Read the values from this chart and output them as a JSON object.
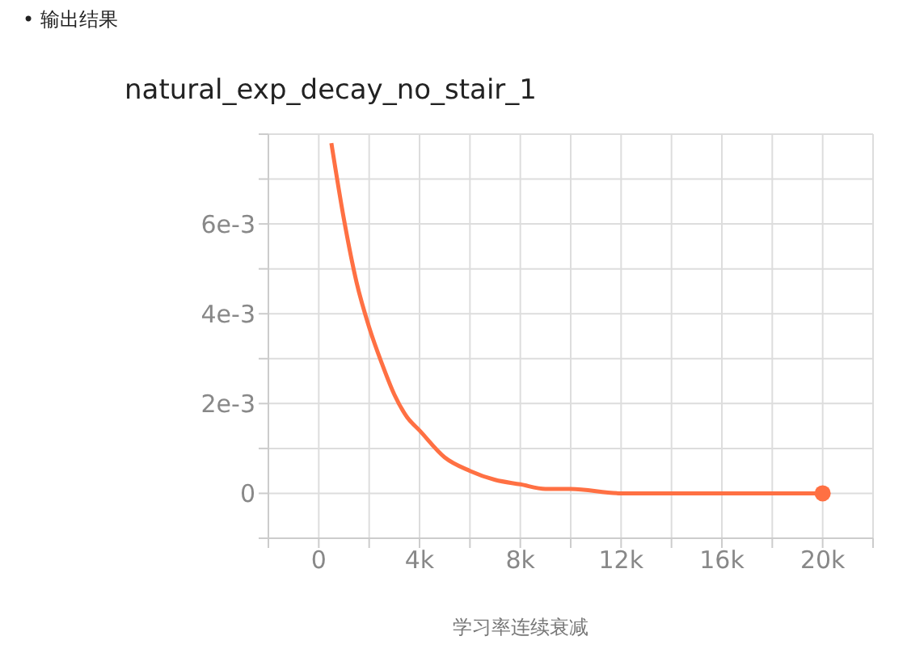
{
  "chart_data": {
    "type": "line",
    "title": "natural_exp_decay_no_stair_1",
    "annotations": [
      "• 输出结果",
      "学习率连续衰减"
    ],
    "x": [
      500,
      1000,
      1500,
      2000,
      2500,
      3000,
      3500,
      4000,
      5000,
      6000,
      7000,
      8000,
      9000,
      10000,
      12000,
      14000,
      16000,
      18000,
      20000
    ],
    "series": [
      {
        "color": "#ff7043",
        "values": [
          0.0078,
          0.0061,
          0.0047,
          0.0037,
          0.0029,
          0.0022,
          0.0017,
          0.0014,
          0.0008,
          0.0005,
          0.0003,
          0.0002,
          0.0001,
          0.0001,
          0,
          0,
          0,
          0,
          0
        ]
      }
    ],
    "xlim": [
      -2000,
      22000
    ],
    "xticks": [
      {
        "value": -2000,
        "label": null
      },
      0,
      {
        "value": 2000,
        "label": null
      },
      {
        "value": 4000,
        "label": "4k"
      },
      {
        "value": 6000,
        "label": null
      },
      {
        "value": 8000,
        "label": "8k"
      },
      {
        "value": 10000,
        "label": null
      },
      {
        "value": 12000,
        "label": "12k"
      },
      {
        "value": 14000,
        "label": null
      },
      {
        "value": 16000,
        "label": "16k"
      },
      {
        "value": 18000,
        "label": null
      },
      {
        "value": 20000,
        "label": "20k"
      },
      {
        "value": 22000,
        "label": null
      }
    ],
    "ylim": [
      -0.001,
      0.008
    ],
    "yticks": [
      {
        "value": -0.001,
        "label": null
      },
      0,
      {
        "value": 0.001,
        "label": null
      },
      {
        "value": 0.002,
        "label": "2e-3"
      },
      {
        "value": 0.003,
        "label": null
      },
      {
        "value": 0.004,
        "label": "4e-3"
      },
      {
        "value": 0.005,
        "label": null
      },
      {
        "value": 0.006,
        "label": "6e-3"
      },
      {
        "value": 0.007,
        "label": null
      },
      {
        "value": 0.008,
        "label": null
      }
    ],
    "grid": true
  }
}
